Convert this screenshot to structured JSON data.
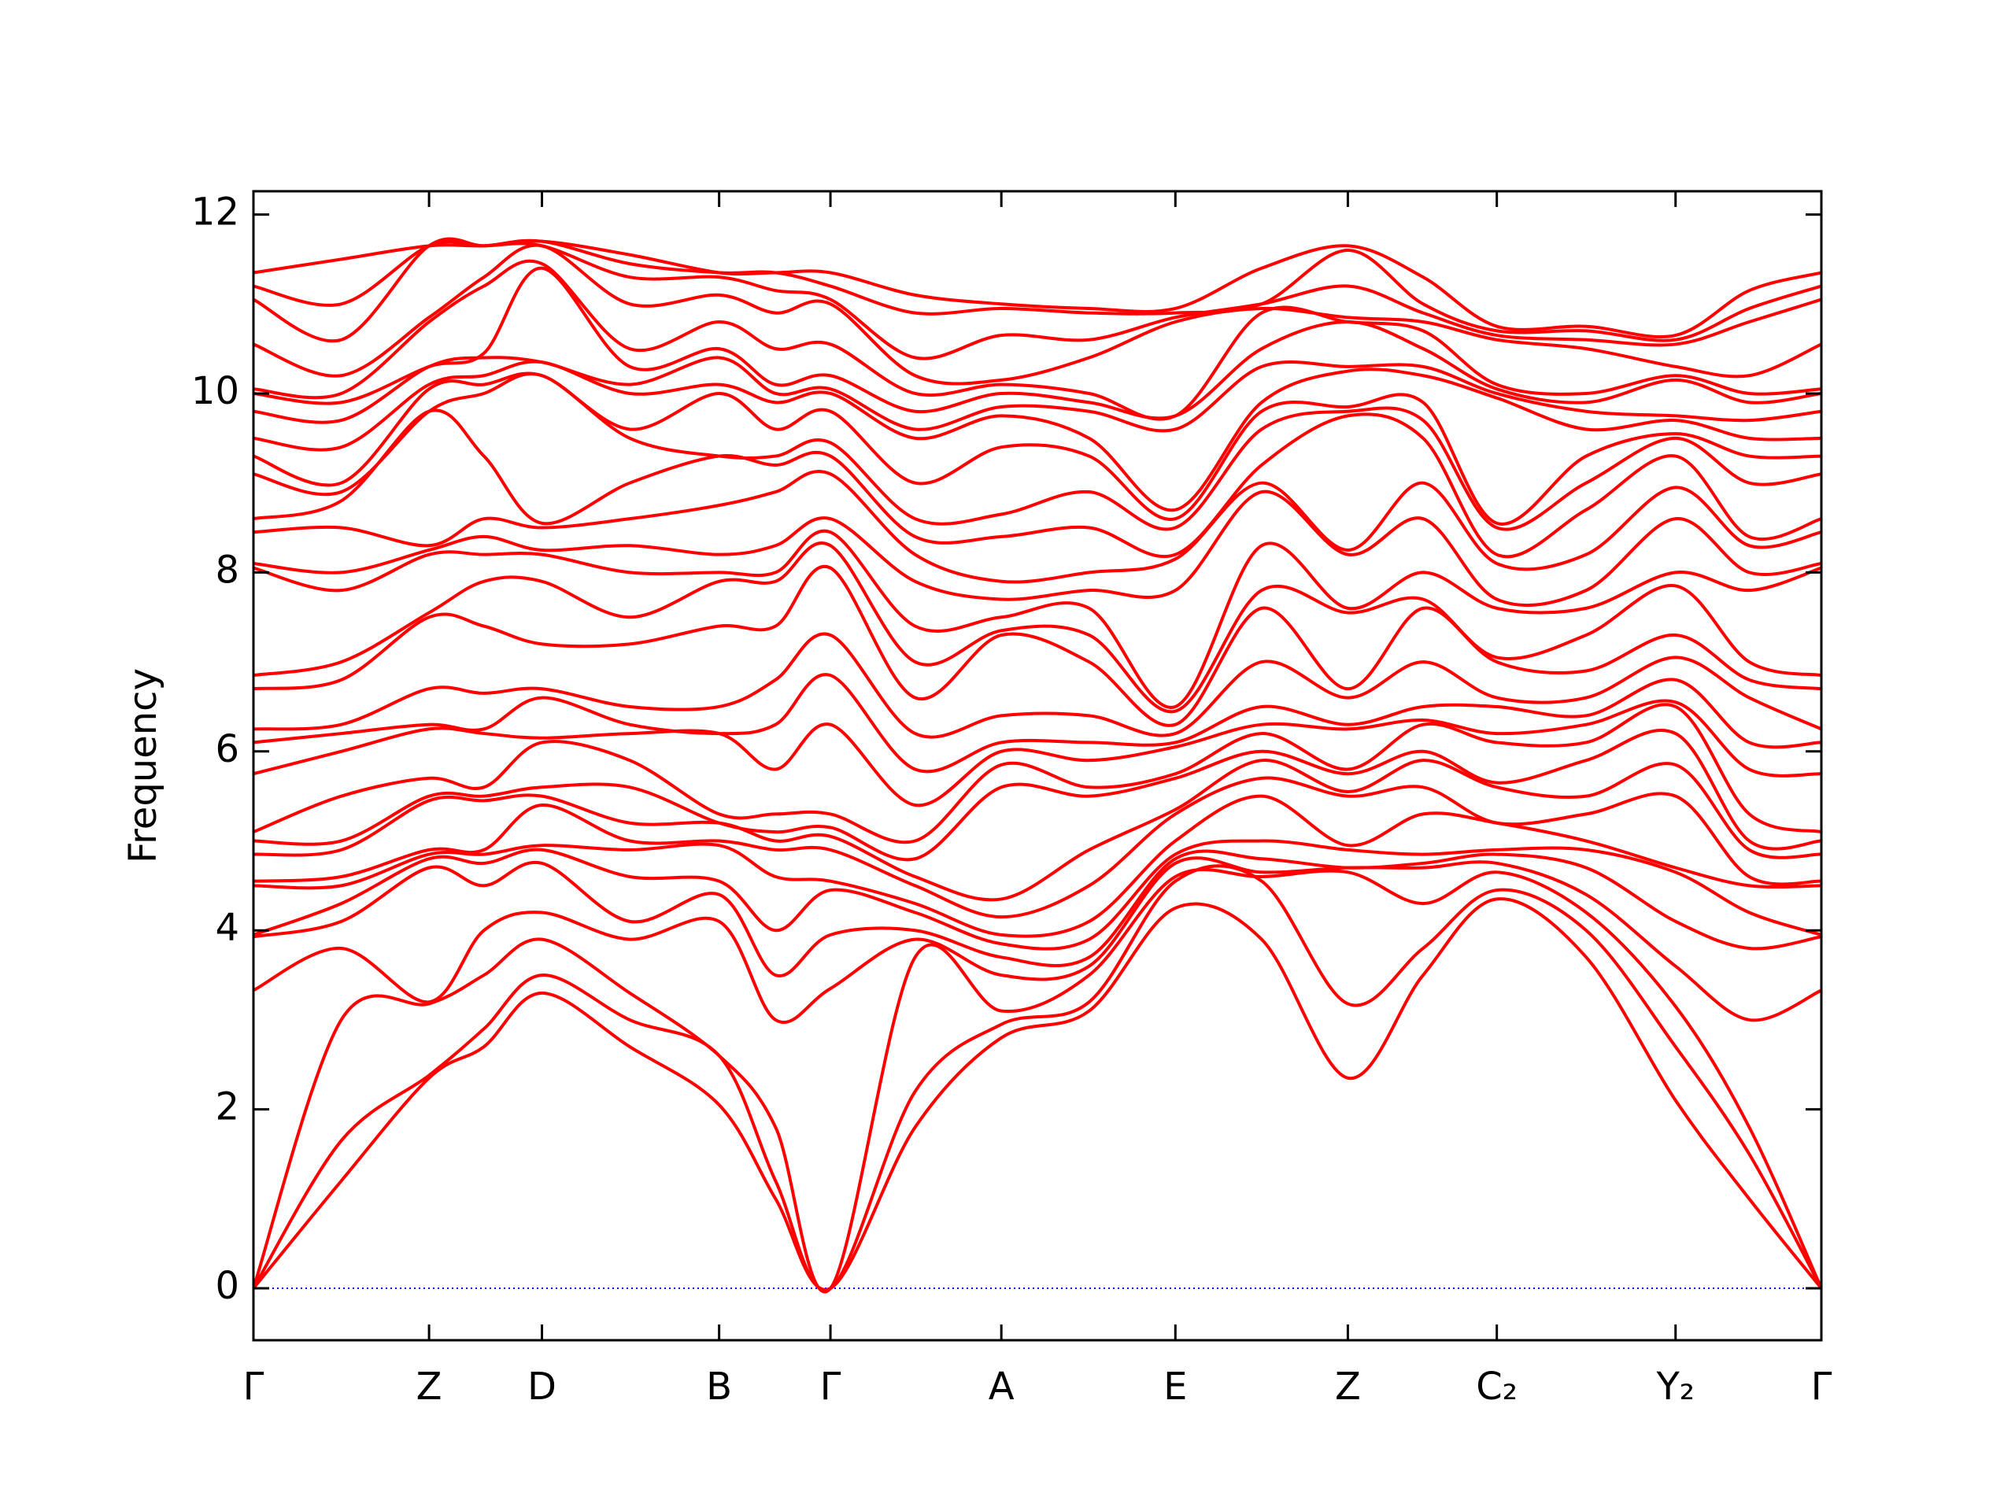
{
  "chart_data": {
    "type": "band_structure",
    "y_label": "Frequency",
    "color": "#ff0000",
    "line_width": 4,
    "xlim": [
      0,
      1
    ],
    "ylim": [
      -0.58,
      12.26
    ],
    "xticks": [
      {
        "value": 0,
        "label": "Γ"
      },
      {
        "value": 0.112,
        "label": "Z"
      },
      {
        "value": 0.184,
        "label": "D"
      },
      {
        "value": 0.297,
        "label": "B"
      },
      {
        "value": 0.368,
        "label": "Γ"
      },
      {
        "value": 0.477,
        "label": "A"
      },
      {
        "value": 0.588,
        "label": "E"
      },
      {
        "value": 0.698,
        "label": "Z"
      },
      {
        "value": 0.793,
        "label": "C₂"
      },
      {
        "value": 0.907,
        "label": "Y₂"
      },
      {
        "value": 1,
        "label": "Γ"
      }
    ],
    "yticks": [
      0,
      2,
      4,
      6,
      8,
      10,
      12
    ],
    "hline": {
      "value": 0,
      "color": "#0000ff",
      "style": "dotted"
    },
    "x": [
      0,
      0.056,
      0.112,
      0.147,
      0.184,
      0.24,
      0.297,
      0.333,
      0.368,
      0.422,
      0.477,
      0.533,
      0.588,
      0.643,
      0.698,
      0.746,
      0.793,
      0.85,
      0.907,
      0.954,
      1
    ],
    "series": [
      {
        "values": [
          0,
          1.2,
          2.35,
          2.7,
          3.3,
          2.7,
          2.05,
          1.0,
          0,
          1.8,
          2.8,
          3.1,
          4.25,
          3.9,
          2.35,
          3.5,
          4.35,
          3.7,
          2.1,
          1.0,
          0
        ]
      },
      {
        "values": [
          0,
          1.65,
          2.38,
          2.9,
          3.5,
          3.0,
          2.6,
          1.2,
          0,
          2.2,
          2.95,
          3.2,
          4.55,
          4.55,
          3.18,
          3.8,
          4.45,
          4.0,
          2.7,
          1.5,
          0
        ]
      },
      {
        "values": [
          0,
          3.0,
          3.18,
          3.5,
          3.9,
          3.3,
          2.6,
          1.8,
          0,
          3.7,
          3.1,
          3.5,
          4.6,
          4.6,
          4.65,
          4.3,
          4.65,
          4.2,
          3.15,
          1.8,
          0
        ]
      },
      {
        "values": [
          3.33,
          3.8,
          3.2,
          4.0,
          4.2,
          3.9,
          4.1,
          3.0,
          3.35,
          3.9,
          3.5,
          3.6,
          4.75,
          4.65,
          4.7,
          4.7,
          4.75,
          4.4,
          3.6,
          3.0,
          3.33
        ]
      },
      {
        "values": [
          3.93,
          4.1,
          4.7,
          4.5,
          4.75,
          4.1,
          4.4,
          3.5,
          3.95,
          4.0,
          3.7,
          3.7,
          4.8,
          4.8,
          4.7,
          4.75,
          4.85,
          4.7,
          4.1,
          3.8,
          3.93
        ]
      },
      {
        "values": [
          3.95,
          4.3,
          4.8,
          4.75,
          4.9,
          4.6,
          4.55,
          4.0,
          4.45,
          4.2,
          3.85,
          3.9,
          4.85,
          5.0,
          4.9,
          4.85,
          4.9,
          4.9,
          4.65,
          4.2,
          3.95
        ]
      },
      {
        "values": [
          4.5,
          4.5,
          4.85,
          4.85,
          4.95,
          4.9,
          4.95,
          4.6,
          4.55,
          4.3,
          3.95,
          4.1,
          5.0,
          5.5,
          4.95,
          5.3,
          5.2,
          5.0,
          4.7,
          4.5,
          4.5
        ]
      },
      {
        "values": [
          4.55,
          4.6,
          4.9,
          4.9,
          5.4,
          5.0,
          5.0,
          4.9,
          4.9,
          4.5,
          4.15,
          4.5,
          5.3,
          5.7,
          5.5,
          5.6,
          5.2,
          5.3,
          5.5,
          4.6,
          4.55
        ]
      },
      {
        "values": [
          4.85,
          4.9,
          5.45,
          5.45,
          5.5,
          5.2,
          5.2,
          5.0,
          5.05,
          4.6,
          4.35,
          4.9,
          5.35,
          5.9,
          5.55,
          5.9,
          5.6,
          5.5,
          5.85,
          4.9,
          4.85
        ]
      },
      {
        "values": [
          5.0,
          5.0,
          5.5,
          5.5,
          5.6,
          5.6,
          5.2,
          5.1,
          5.15,
          4.8,
          5.6,
          5.5,
          5.7,
          6.0,
          5.75,
          6.0,
          5.65,
          5.9,
          6.2,
          5.0,
          5.0
        ]
      },
      {
        "values": [
          5.1,
          5.5,
          5.7,
          5.6,
          6.1,
          5.9,
          5.3,
          5.3,
          5.3,
          5.0,
          5.85,
          5.6,
          5.75,
          6.2,
          5.8,
          6.3,
          6.1,
          6.1,
          6.5,
          5.3,
          5.1
        ]
      },
      {
        "values": [
          5.75,
          6.0,
          6.25,
          6.2,
          6.15,
          6.2,
          6.2,
          5.8,
          6.3,
          5.4,
          6.0,
          5.9,
          6.05,
          6.3,
          6.25,
          6.35,
          6.2,
          6.3,
          6.55,
          5.8,
          5.75
        ]
      },
      {
        "values": [
          6.1,
          6.2,
          6.3,
          6.25,
          6.6,
          6.3,
          6.2,
          6.3,
          6.85,
          5.8,
          6.1,
          6.1,
          6.1,
          6.5,
          6.3,
          6.5,
          6.5,
          6.4,
          6.8,
          6.1,
          6.1
        ]
      },
      {
        "values": [
          6.25,
          6.3,
          6.7,
          6.65,
          6.7,
          6.5,
          6.5,
          6.8,
          7.3,
          6.2,
          6.4,
          6.4,
          6.2,
          7.0,
          6.6,
          7.0,
          6.6,
          6.6,
          7.05,
          6.6,
          6.25
        ]
      },
      {
        "values": [
          6.7,
          6.8,
          7.5,
          7.4,
          7.2,
          7.2,
          7.4,
          7.4,
          8.05,
          6.6,
          7.3,
          7.0,
          6.3,
          7.6,
          6.7,
          7.6,
          7.0,
          6.9,
          7.3,
          6.8,
          6.7
        ]
      },
      {
        "values": [
          6.85,
          7.0,
          7.55,
          7.9,
          7.9,
          7.5,
          7.9,
          7.9,
          8.3,
          7.0,
          7.35,
          7.3,
          6.45,
          7.8,
          7.55,
          7.7,
          7.05,
          7.3,
          7.85,
          7.0,
          6.85
        ]
      },
      {
        "values": [
          8.05,
          7.8,
          8.2,
          8.2,
          8.2,
          8.0,
          8.0,
          8.0,
          8.45,
          7.4,
          7.5,
          7.6,
          6.5,
          8.3,
          7.6,
          8.0,
          7.6,
          7.6,
          8.0,
          7.8,
          8.05
        ]
      },
      {
        "values": [
          8.1,
          8.0,
          8.25,
          8.4,
          8.25,
          8.3,
          8.2,
          8.3,
          8.6,
          7.9,
          7.7,
          7.8,
          7.8,
          8.9,
          8.2,
          8.6,
          7.7,
          7.8,
          8.6,
          8.0,
          8.1
        ]
      },
      {
        "values": [
          8.45,
          8.5,
          8.3,
          8.6,
          8.5,
          8.6,
          8.75,
          8.9,
          9.1,
          8.2,
          7.9,
          8.0,
          8.15,
          9.0,
          8.25,
          9.0,
          8.1,
          8.2,
          8.95,
          8.3,
          8.45
        ]
      },
      {
        "values": [
          8.6,
          8.8,
          9.8,
          9.3,
          8.55,
          9.0,
          9.3,
          9.2,
          9.3,
          8.4,
          8.4,
          8.5,
          8.2,
          9.2,
          9.75,
          9.5,
          8.2,
          8.7,
          9.3,
          8.4,
          8.6
        ]
      },
      {
        "values": [
          9.1,
          8.9,
          9.8,
          10.0,
          10.2,
          9.5,
          9.3,
          9.3,
          9.45,
          8.6,
          8.65,
          8.9,
          8.5,
          9.6,
          9.8,
          9.7,
          8.5,
          9.0,
          9.5,
          9.0,
          9.1
        ]
      },
      {
        "values": [
          9.3,
          9.0,
          10.05,
          10.1,
          10.2,
          9.6,
          10.0,
          9.6,
          9.8,
          9.0,
          9.4,
          9.3,
          8.6,
          9.8,
          9.85,
          9.9,
          8.55,
          9.3,
          9.55,
          9.3,
          9.3
        ]
      },
      {
        "values": [
          9.5,
          9.4,
          10.1,
          10.2,
          10.35,
          10.0,
          10.1,
          9.9,
          10.0,
          9.5,
          9.75,
          9.5,
          8.7,
          9.9,
          10.25,
          10.2,
          9.95,
          9.6,
          9.7,
          9.5,
          9.5
        ]
      },
      {
        "values": [
          9.8,
          9.7,
          10.3,
          10.4,
          10.35,
          10.1,
          10.4,
          10.0,
          10.05,
          9.6,
          9.85,
          9.8,
          9.6,
          10.3,
          10.3,
          10.3,
          10.0,
          9.8,
          9.75,
          9.7,
          9.8
        ]
      },
      {
        "values": [
          10.0,
          9.9,
          10.3,
          10.45,
          11.4,
          10.3,
          10.5,
          10.1,
          10.2,
          9.8,
          10.0,
          9.9,
          9.75,
          10.5,
          10.8,
          10.5,
          10.05,
          9.9,
          10.15,
          9.9,
          10.0
        ]
      },
      {
        "values": [
          10.05,
          10.0,
          10.8,
          11.2,
          11.45,
          10.5,
          10.8,
          10.5,
          10.55,
          10.0,
          10.1,
          10.0,
          9.75,
          10.9,
          10.8,
          10.7,
          10.1,
          10.0,
          10.2,
          10.0,
          10.05
        ]
      },
      {
        "values": [
          10.55,
          10.2,
          10.85,
          11.3,
          11.65,
          11.0,
          11.1,
          10.9,
          11.0,
          10.2,
          10.15,
          10.4,
          10.8,
          10.95,
          10.85,
          10.8,
          10.6,
          10.5,
          10.3,
          10.2,
          10.55
        ]
      },
      {
        "values": [
          11.05,
          10.6,
          11.65,
          11.65,
          11.65,
          11.3,
          11.3,
          11.15,
          11.05,
          10.4,
          10.65,
          10.6,
          10.85,
          11.0,
          11.2,
          10.9,
          10.65,
          10.6,
          10.55,
          10.8,
          11.05
        ]
      },
      {
        "values": [
          11.2,
          11.0,
          11.65,
          11.65,
          11.7,
          11.45,
          11.35,
          11.35,
          11.2,
          10.9,
          10.95,
          10.9,
          10.9,
          11.0,
          11.6,
          11.0,
          10.7,
          10.7,
          10.6,
          10.95,
          11.2
        ]
      },
      {
        "values": [
          11.35,
          11.5,
          11.65,
          11.65,
          11.7,
          11.55,
          11.35,
          11.35,
          11.35,
          11.1,
          11.0,
          10.95,
          10.95,
          11.4,
          11.65,
          11.3,
          10.75,
          10.75,
          10.65,
          11.15,
          11.35
        ]
      }
    ]
  }
}
